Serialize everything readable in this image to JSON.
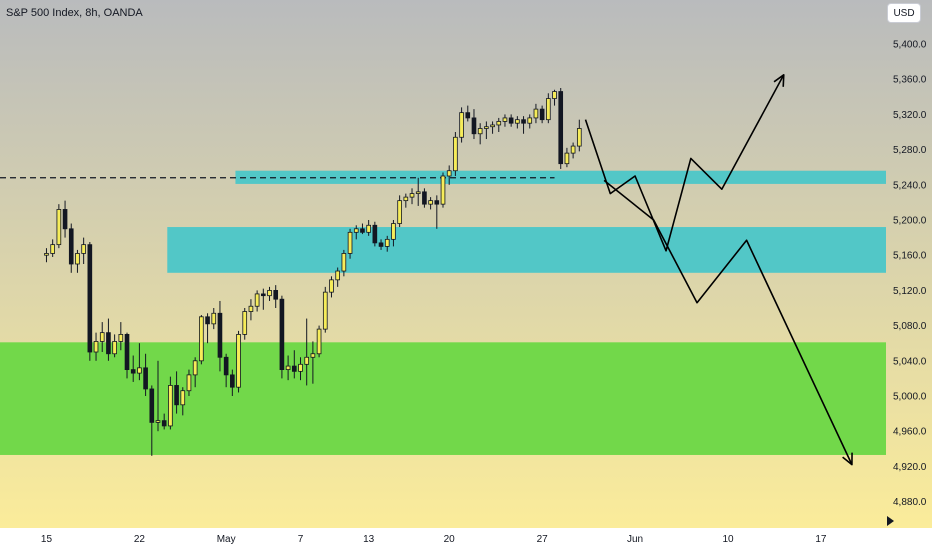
{
  "header": {
    "symbol_title": "S&P 500 Index, 8h, OANDA",
    "currency_label": "USD"
  },
  "scroll_icon": "right-triangle",
  "colors": {
    "bullish": "#f6ec5a",
    "bearish": "#131722",
    "resistance_zone": "#52c7c7",
    "demand_zone": "#72d84a",
    "projection_line": "#000000",
    "gradient_top": "#b9bbbd",
    "gradient_bottom": "#fbec9a"
  },
  "chart_data": {
    "type": "candlestick",
    "title": "S&P 500 Index, 8h, OANDA",
    "ylabel": "USD",
    "ylim": [
      4850,
      5450
    ],
    "yticks": [
      4880,
      4920,
      4960,
      5000,
      5040,
      5080,
      5120,
      5160,
      5200,
      5240,
      5280,
      5320,
      5360,
      5400,
      5440
    ],
    "ytick_labels": [
      "4,880.0",
      "4,920.0",
      "4,960.0",
      "5,000.0",
      "5,040.0",
      "5,080.0",
      "5,120.0",
      "5,160.0",
      "5,200.0",
      "5,240.0",
      "5,280.0",
      "5,320.0",
      "5,360.0",
      "5,400.0",
      ""
    ],
    "xtick_labels": [
      "15",
      "22",
      "May",
      "7",
      "13",
      "20",
      "27",
      "Jun",
      "10",
      "17"
    ],
    "xtick_positions": [
      0,
      15,
      29,
      41,
      52,
      65,
      80,
      95,
      110,
      125
    ],
    "xlim": [
      -7.5,
      135.5
    ],
    "grid": false,
    "candles": [
      [
        5160,
        5168,
        5152,
        5162
      ],
      [
        5162,
        5178,
        5158,
        5172
      ],
      [
        5172,
        5218,
        5168,
        5212
      ],
      [
        5212,
        5222,
        5180,
        5190
      ],
      [
        5190,
        5196,
        5140,
        5150
      ],
      [
        5150,
        5166,
        5140,
        5162
      ],
      [
        5162,
        5180,
        5150,
        5172
      ],
      [
        5172,
        5175,
        5040,
        5050
      ],
      [
        5050,
        5072,
        5040,
        5062
      ],
      [
        5062,
        5084,
        5050,
        5072
      ],
      [
        5072,
        5088,
        5040,
        5048
      ],
      [
        5048,
        5070,
        5044,
        5062
      ],
      [
        5062,
        5084,
        5052,
        5070
      ],
      [
        5070,
        5072,
        5020,
        5030
      ],
      [
        5030,
        5046,
        5016,
        5026
      ],
      [
        5026,
        5060,
        5018,
        5032
      ],
      [
        5032,
        5048,
        5000,
        5008
      ],
      [
        5008,
        5012,
        4932,
        4970
      ],
      [
        4970,
        5040,
        4960,
        4972
      ],
      [
        4972,
        4980,
        4962,
        4966
      ],
      [
        4966,
        5022,
        4962,
        5012
      ],
      [
        5012,
        5028,
        4980,
        4990
      ],
      [
        4990,
        5010,
        4978,
        5006
      ],
      [
        5006,
        5030,
        5000,
        5024
      ],
      [
        5024,
        5044,
        5010,
        5040
      ],
      [
        5040,
        5092,
        5036,
        5090
      ],
      [
        5090,
        5094,
        5060,
        5082
      ],
      [
        5082,
        5100,
        5076,
        5094
      ],
      [
        5094,
        5108,
        5028,
        5044
      ],
      [
        5044,
        5048,
        5010,
        5024
      ],
      [
        5024,
        5030,
        5000,
        5010
      ],
      [
        5010,
        5074,
        5004,
        5070
      ],
      [
        5070,
        5100,
        5064,
        5096
      ],
      [
        5096,
        5110,
        5086,
        5102
      ],
      [
        5102,
        5120,
        5096,
        5116
      ],
      [
        5116,
        5122,
        5098,
        5114
      ],
      [
        5114,
        5124,
        5108,
        5120
      ],
      [
        5120,
        5126,
        5100,
        5110
      ],
      [
        5110,
        5114,
        5020,
        5030
      ],
      [
        5030,
        5046,
        5018,
        5034
      ],
      [
        5034,
        5052,
        5020,
        5028
      ],
      [
        5028,
        5044,
        5018,
        5036
      ],
      [
        5036,
        5088,
        5012,
        5044
      ],
      [
        5044,
        5062,
        5014,
        5048
      ],
      [
        5048,
        5080,
        5044,
        5076
      ],
      [
        5076,
        5124,
        5072,
        5118
      ],
      [
        5118,
        5136,
        5112,
        5132
      ],
      [
        5132,
        5146,
        5124,
        5142
      ],
      [
        5142,
        5166,
        5136,
        5162
      ],
      [
        5162,
        5190,
        5156,
        5186
      ],
      [
        5186,
        5194,
        5178,
        5190
      ],
      [
        5190,
        5196,
        5184,
        5186
      ],
      [
        5186,
        5200,
        5182,
        5194
      ],
      [
        5194,
        5198,
        5170,
        5174
      ],
      [
        5174,
        5178,
        5166,
        5170
      ],
      [
        5170,
        5182,
        5164,
        5178
      ],
      [
        5178,
        5200,
        5170,
        5196
      ],
      [
        5196,
        5228,
        5192,
        5222
      ],
      [
        5222,
        5230,
        5214,
        5226
      ],
      [
        5226,
        5236,
        5218,
        5230
      ],
      [
        5230,
        5248,
        5216,
        5232
      ],
      [
        5232,
        5236,
        5214,
        5218
      ],
      [
        5218,
        5226,
        5212,
        5222
      ],
      [
        5222,
        5228,
        5190,
        5218
      ],
      [
        5218,
        5254,
        5214,
        5250
      ],
      [
        5250,
        5262,
        5240,
        5256
      ],
      [
        5256,
        5300,
        5250,
        5294
      ],
      [
        5294,
        5328,
        5288,
        5322
      ],
      [
        5322,
        5330,
        5312,
        5316
      ],
      [
        5316,
        5326,
        5292,
        5298
      ],
      [
        5298,
        5310,
        5286,
        5304
      ],
      [
        5304,
        5312,
        5292,
        5306
      ],
      [
        5306,
        5312,
        5298,
        5308
      ],
      [
        5308,
        5316,
        5300,
        5312
      ],
      [
        5312,
        5320,
        5306,
        5316
      ],
      [
        5316,
        5320,
        5306,
        5310
      ],
      [
        5310,
        5318,
        5304,
        5314
      ],
      [
        5314,
        5318,
        5298,
        5310
      ],
      [
        5310,
        5320,
        5304,
        5316
      ],
      [
        5316,
        5332,
        5310,
        5326
      ],
      [
        5326,
        5330,
        5310,
        5314
      ],
      [
        5314,
        5344,
        5310,
        5338
      ],
      [
        5338,
        5348,
        5330,
        5346
      ],
      [
        5346,
        5350,
        5258,
        5264
      ],
      [
        5264,
        5282,
        5260,
        5276
      ],
      [
        5276,
        5288,
        5270,
        5284
      ],
      [
        5284,
        5314,
        5278,
        5304
      ]
    ],
    "zones": [
      {
        "name": "upper-resistance-zone",
        "y_low": 5241,
        "y_high": 5256,
        "x_from": 30.5
      },
      {
        "name": "middle-resistance-zone",
        "y_low": 5140,
        "y_high": 5192,
        "x_from": 19.5
      },
      {
        "name": "demand-zone",
        "y_low": 4933,
        "y_high": 5061,
        "x_from": -7.5
      }
    ],
    "dashed_levels": [
      {
        "name": "breakout-level",
        "y": 5248,
        "x_from": -7.5,
        "x_to": 82
      }
    ],
    "projections": [
      {
        "name": "bullish-projection",
        "points": [
          [
            87,
            5314
          ],
          [
            91,
            5230
          ],
          [
            95,
            5250
          ],
          [
            100,
            5165
          ],
          [
            104,
            5270
          ],
          [
            109,
            5235
          ],
          [
            119,
            5365
          ]
        ],
        "arrow": true
      },
      {
        "name": "bearish-projection",
        "points": [
          [
            90,
            5245
          ],
          [
            98,
            5200
          ],
          [
            105,
            5106
          ],
          [
            113,
            5177
          ],
          [
            130,
            4922
          ]
        ],
        "arrow": true
      }
    ]
  }
}
